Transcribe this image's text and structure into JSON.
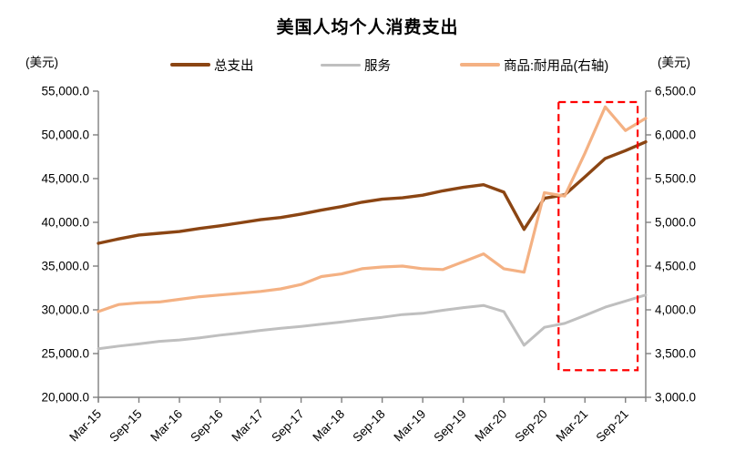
{
  "title": "美国人均个人消费支出",
  "left_axis_unit": "(美元)",
  "right_axis_unit": "(美元)",
  "legend": [
    {
      "key": "total",
      "label": "总支出",
      "color": "#8B4513"
    },
    {
      "key": "services",
      "label": "服务",
      "color": "#BFBFBF"
    },
    {
      "key": "durables",
      "label": "商品:耐用品(右轴)",
      "color": "#F4B183"
    }
  ],
  "colors": {
    "axis": "#7F7F7F",
    "highlight": "#FF0000",
    "text": "#000000",
    "background": "#FFFFFF"
  },
  "chart_data": {
    "type": "line",
    "x": [
      "Mar-15",
      "Jun-15",
      "Sep-15",
      "Dec-15",
      "Mar-16",
      "Jun-16",
      "Sep-16",
      "Dec-16",
      "Mar-17",
      "Jun-17",
      "Sep-17",
      "Dec-17",
      "Mar-18",
      "Jun-18",
      "Sep-18",
      "Dec-18",
      "Mar-19",
      "Jun-19",
      "Sep-19",
      "Dec-19",
      "Mar-20",
      "Jun-20",
      "Sep-20",
      "Dec-20",
      "Mar-21",
      "Jun-21",
      "Sep-21",
      "Dec-21"
    ],
    "x_tick_labels": [
      "Mar-15",
      "Sep-15",
      "Mar-16",
      "Sep-16",
      "Mar-17",
      "Sep-17",
      "Mar-18",
      "Sep-18",
      "Mar-19",
      "Sep-19",
      "Mar-20",
      "Sep-20",
      "Mar-21",
      "Sep-21"
    ],
    "x_tick_every": 2,
    "series": [
      {
        "key": "total",
        "name": "总支出",
        "axis": "left",
        "color": "#8B4513",
        "width": 3.4,
        "values": [
          37600,
          38100,
          38550,
          38750,
          38950,
          39300,
          39600,
          39950,
          40300,
          40550,
          40950,
          41400,
          41800,
          42300,
          42650,
          42800,
          43100,
          43600,
          44000,
          44300,
          43450,
          39200,
          42750,
          43150,
          45200,
          47300,
          48200,
          49200
        ]
      },
      {
        "key": "services",
        "name": "服务",
        "axis": "left",
        "color": "#BFBFBF",
        "width": 3,
        "values": [
          25550,
          25850,
          26100,
          26400,
          26550,
          26800,
          27100,
          27350,
          27650,
          27900,
          28100,
          28350,
          28600,
          28900,
          29150,
          29460,
          29600,
          29950,
          30250,
          30500,
          29800,
          25950,
          28000,
          28450,
          29350,
          30300,
          31000,
          31700
        ]
      },
      {
        "key": "durables",
        "name": "商品:耐用品(右轴)",
        "axis": "right",
        "color": "#F4B183",
        "width": 3.2,
        "values": [
          3980,
          4060,
          4080,
          4090,
          4120,
          4150,
          4170,
          4190,
          4210,
          4240,
          4290,
          4380,
          4410,
          4470,
          4490,
          4500,
          4470,
          4460,
          4550,
          4640,
          4470,
          4430,
          5340,
          5300,
          5790,
          6320,
          6050,
          6190
        ]
      }
    ],
    "left_axis": {
      "min": 20000,
      "max": 55000,
      "step": 5000,
      "tick_labels": [
        "55,000.0",
        "50,000.0",
        "45,000.0",
        "40,000.0",
        "35,000.0",
        "30,000.0",
        "25,000.0",
        "20,000.0"
      ]
    },
    "right_axis": {
      "min": 3000,
      "max": 6500,
      "step": 500,
      "tick_labels": [
        "6,500.0",
        "6,000.0",
        "5,500.0",
        "5,000.0",
        "4,500.0",
        "4,000.0",
        "3,500.0",
        "3,000.0"
      ]
    },
    "grid": false,
    "legend_position": "top",
    "highlight_box": {
      "x_start_index": 22.7,
      "x_end_index": 26.6,
      "top_value": 53750,
      "bottom_value": 23100,
      "color": "#FF0000",
      "style": "dashed"
    }
  }
}
